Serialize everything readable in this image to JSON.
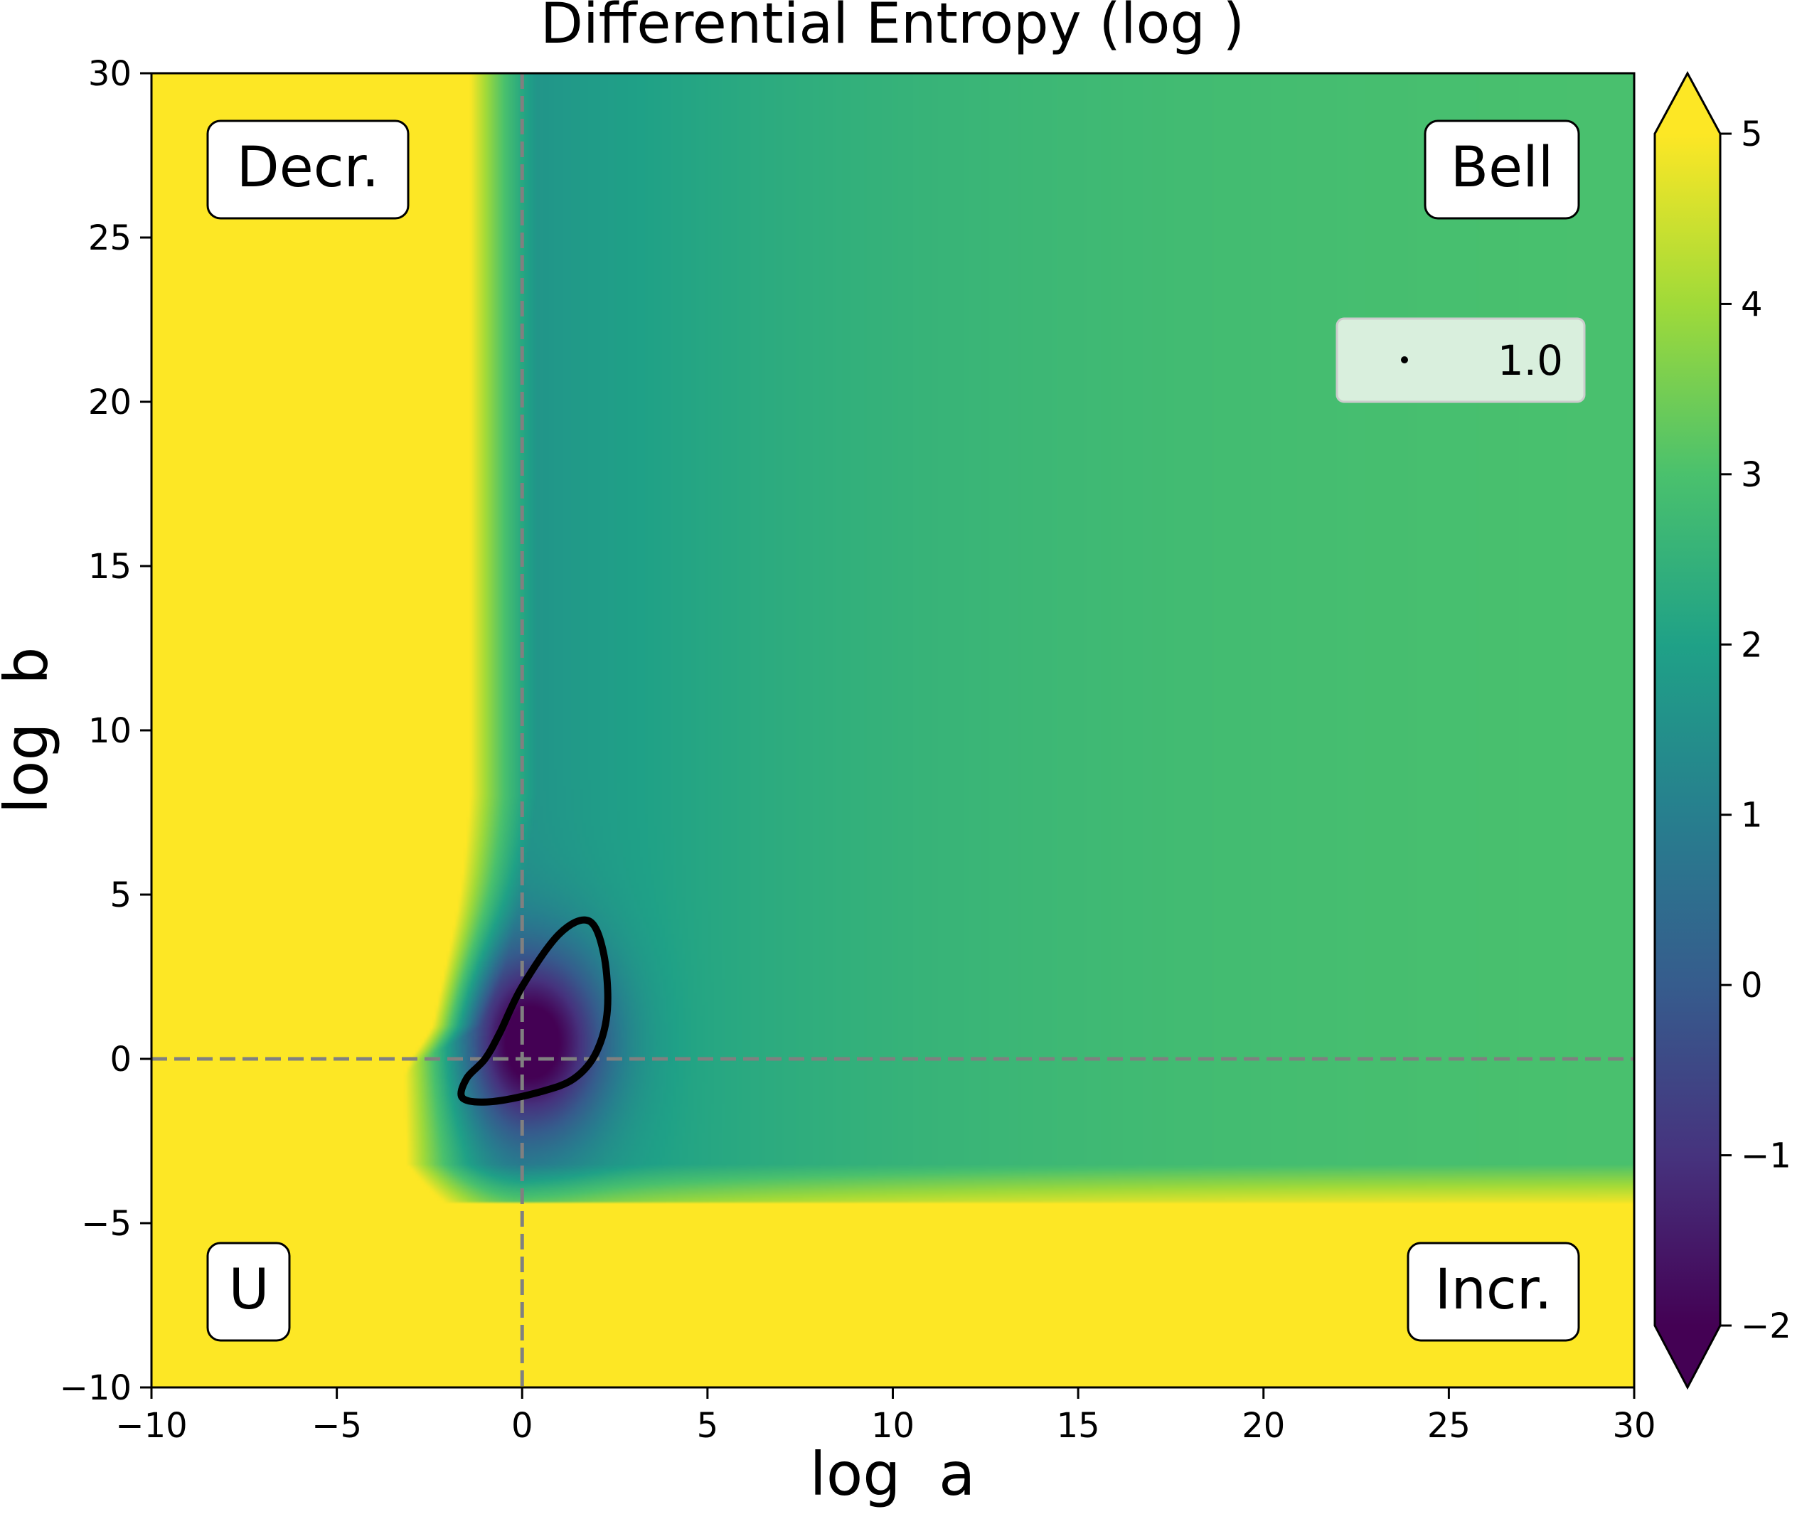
{
  "chart_data": {
    "type": "heatmap",
    "title": "Differential Entropy (log )",
    "xlabel": "log  a",
    "ylabel": "log  b",
    "xlim": [
      -10,
      30
    ],
    "ylim": [
      -10,
      30
    ],
    "x_ticks": [
      -10,
      -5,
      0,
      5,
      10,
      15,
      20,
      25,
      30
    ],
    "y_ticks": [
      -10,
      -5,
      0,
      5,
      10,
      15,
      20,
      25,
      30
    ],
    "x_tick_labels": [
      "−10",
      "−5",
      "0",
      "5",
      "10",
      "15",
      "20",
      "25",
      "30"
    ],
    "y_tick_labels": [
      "−10",
      "−5",
      "0",
      "5",
      "10",
      "15",
      "20",
      "25",
      "30"
    ],
    "colormap": "viridis",
    "colorbar": {
      "range": [
        -2,
        5
      ],
      "extend": "both",
      "ticks": [
        -2,
        -1,
        0,
        1,
        2,
        3,
        4,
        5
      ],
      "tick_labels": [
        "−2",
        "−1",
        "0",
        "1",
        "2",
        "3",
        "4",
        "5"
      ]
    },
    "reference_lines": [
      {
        "orientation": "vertical",
        "value": 0,
        "style": "dashed",
        "color": "#808080"
      },
      {
        "orientation": "horizontal",
        "value": 0,
        "style": "dashed",
        "color": "#808080"
      }
    ],
    "annotations": [
      {
        "text": "Decr.",
        "quadrant": "top-left"
      },
      {
        "text": "Bell",
        "quadrant": "top-right"
      },
      {
        "text": "U",
        "quadrant": "bottom-left"
      },
      {
        "text": "Incr.",
        "quadrant": "bottom-right"
      }
    ],
    "legend": {
      "position": "upper-right",
      "entries": [
        {
          "label": "1.0",
          "marker": "dot"
        }
      ]
    },
    "contour": {
      "level": 1.0,
      "color": "#000000",
      "points": [
        [
          0.0,
          2.2
        ],
        [
          1.0,
          3.8
        ],
        [
          1.8,
          4.2
        ],
        [
          2.2,
          3.2
        ],
        [
          2.3,
          1.5
        ],
        [
          2.0,
          0.2
        ],
        [
          1.4,
          -0.6
        ],
        [
          0.5,
          -1.0
        ],
        [
          -0.8,
          -1.3
        ],
        [
          -1.6,
          -1.2
        ],
        [
          -1.5,
          -0.6
        ],
        [
          -1.0,
          0.0
        ],
        [
          -0.6,
          0.8
        ]
      ]
    }
  }
}
